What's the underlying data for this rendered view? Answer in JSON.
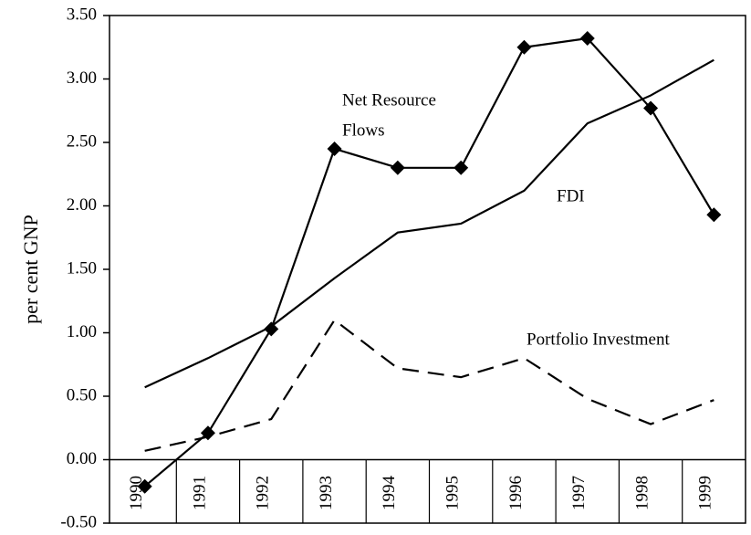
{
  "chart_data": {
    "type": "line",
    "y_label": "per cent GNP",
    "categories": [
      "1990",
      "1991",
      "1992",
      "1993",
      "1994",
      "1995",
      "1996",
      "1997",
      "1998",
      "1999"
    ],
    "series": [
      {
        "color": "#000000",
        "marker": "diamond",
        "dashed": false,
        "values": [
          -0.21,
          0.21,
          1.03,
          2.45,
          2.3,
          2.3,
          3.25,
          3.32,
          2.77,
          1.93
        ]
      },
      {
        "color": "#000000",
        "marker": "none",
        "dashed": false,
        "values": [
          0.57,
          0.8,
          1.05,
          1.43,
          1.79,
          1.86,
          2.12,
          2.65,
          2.87,
          3.15
        ]
      },
      {
        "color": "#000000",
        "marker": "none",
        "dashed": true,
        "values": [
          0.07,
          0.18,
          0.32,
          1.1,
          0.72,
          0.65,
          0.8,
          0.48,
          0.28,
          0.47
        ]
      }
    ],
    "annotations": [
      "Net Resource",
      "Flows",
      "FDI",
      "Portfolio Investment"
    ],
    "ylim": [
      -0.5,
      3.5
    ],
    "yticks": [
      {
        "value": -0.5,
        "label": "-0.50"
      },
      {
        "value": 0,
        "label": "0.00"
      },
      {
        "value": 0.5,
        "label": "0.50"
      },
      {
        "value": 1,
        "label": "1.00"
      },
      {
        "value": 1.5,
        "label": "1.50"
      },
      {
        "value": 2,
        "label": "2.00"
      },
      {
        "value": 2.5,
        "label": "2.50"
      },
      {
        "value": 3,
        "label": "3.00"
      },
      {
        "value": 3.5,
        "label": "3.50"
      }
    ]
  }
}
